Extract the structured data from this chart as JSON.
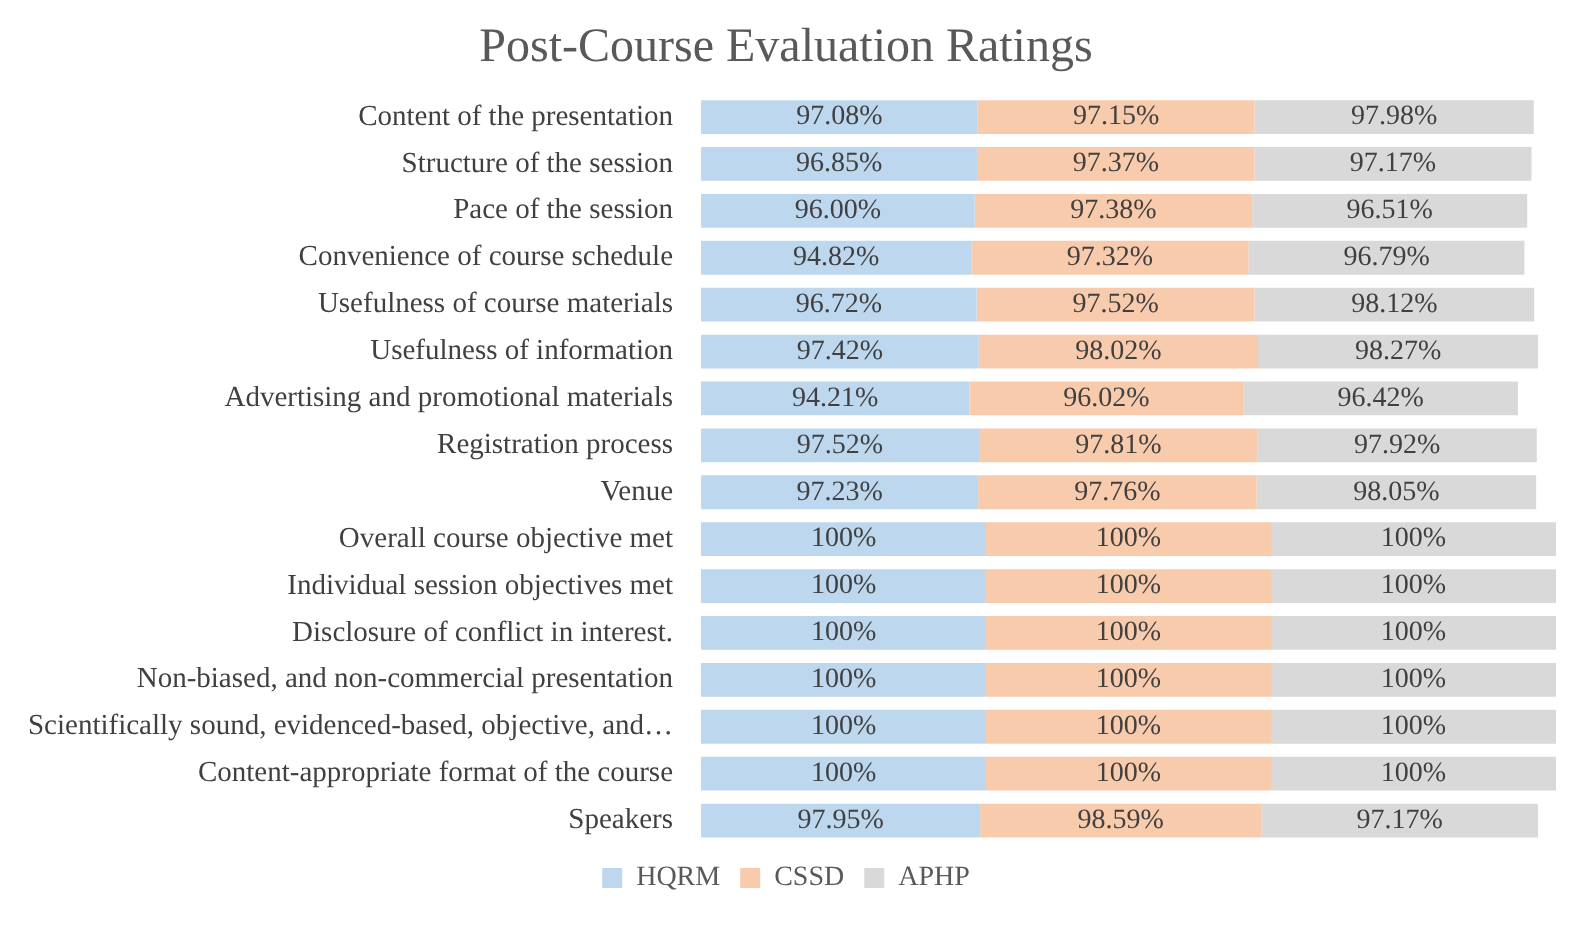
{
  "chart_data": {
    "type": "bar",
    "orientation": "horizontal",
    "stacked": true,
    "title": "Post-Course Evaluation Ratings",
    "legend": "bottom",
    "categories": [
      "Content of the presentation",
      "Structure of the session",
      "Pace of the session",
      "Convenience of course schedule",
      "Usefulness of course materials",
      "Usefulness of information",
      "Advertising and promotional materials",
      "Registration process",
      "Venue",
      "Overall course objective met",
      "Individual session objectives met",
      "Disclosure of conflict in interest.",
      "Non-biased, and non-commercial presentation",
      "Scientifically sound, evidenced-based, objective, and…",
      "Content-appropriate format of the course",
      "Speakers"
    ],
    "series": [
      {
        "name": "HQRM",
        "color": "#bdd7ee",
        "values": [
          97.08,
          96.85,
          96.0,
          94.82,
          96.72,
          97.42,
          94.21,
          97.52,
          97.23,
          100,
          100,
          100,
          100,
          100,
          100,
          97.95
        ],
        "value_labels": [
          "97.08%",
          "96.85%",
          "96.00%",
          "94.82%",
          "96.72%",
          "97.42%",
          "94.21%",
          "97.52%",
          "97.23%",
          "100%",
          "100%",
          "100%",
          "100%",
          "100%",
          "100%",
          "97.95%"
        ]
      },
      {
        "name": "CSSD",
        "color": "#f8cbad",
        "values": [
          97.15,
          97.37,
          97.38,
          97.32,
          97.52,
          98.02,
          96.02,
          97.81,
          97.76,
          100,
          100,
          100,
          100,
          100,
          100,
          98.59
        ],
        "value_labels": [
          "97.15%",
          "97.37%",
          "97.38%",
          "97.32%",
          "97.52%",
          "98.02%",
          "96.02%",
          "97.81%",
          "97.76%",
          "100%",
          "100%",
          "100%",
          "100%",
          "100%",
          "100%",
          "98.59%"
        ]
      },
      {
        "name": "APHP",
        "color": "#d9d9d9",
        "values": [
          97.98,
          97.17,
          96.51,
          96.79,
          98.12,
          98.27,
          96.42,
          97.92,
          98.05,
          100,
          100,
          100,
          100,
          100,
          100,
          97.17
        ],
        "value_labels": [
          "97.98%",
          "97.17%",
          "96.51%",
          "96.79%",
          "98.12%",
          "98.27%",
          "96.42%",
          "97.92%",
          "98.05%",
          "100%",
          "100%",
          "100%",
          "100%",
          "100%",
          "100%",
          "97.17%"
        ]
      }
    ]
  }
}
